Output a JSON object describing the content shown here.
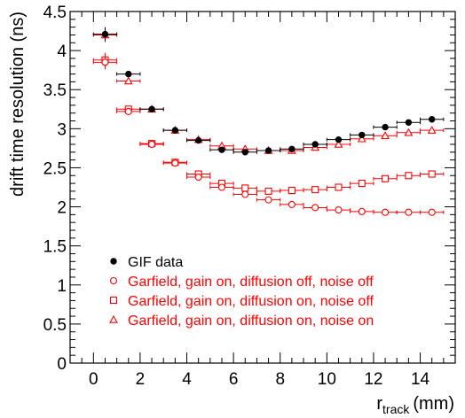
{
  "chart_data": {
    "type": "scatter",
    "xlabel_main": "r",
    "xlabel_sub": "track",
    "xlabel_unit": "(mm)",
    "ylabel": "drift time resolution (ns)",
    "xlim": [
      -1,
      15.5
    ],
    "ylim": [
      0,
      4.5
    ],
    "x_ticks": [
      "0",
      "2",
      "4",
      "6",
      "8",
      "10",
      "12",
      "14"
    ],
    "y_ticks": [
      "0",
      "0.5",
      "1",
      "1.5",
      "2",
      "2.5",
      "3",
      "3.5",
      "4",
      "4.5"
    ],
    "x": [
      0.5,
      1.5,
      2.5,
      3.5,
      4.5,
      5.5,
      6.5,
      7.5,
      8.5,
      9.5,
      10.5,
      11.5,
      12.5,
      13.5,
      14.5
    ],
    "series": [
      {
        "name": "GIF data",
        "color": "#000000",
        "marker": "filled-circle",
        "values": [
          4.21,
          3.7,
          3.25,
          2.98,
          2.85,
          2.73,
          2.7,
          2.72,
          2.74,
          2.8,
          2.86,
          2.92,
          3.02,
          3.08,
          3.12
        ]
      },
      {
        "name": "Garfield, gain on, diffusion off, noise off",
        "color": "#ff0000",
        "marker": "open-circle",
        "values": [
          3.85,
          3.22,
          2.8,
          2.56,
          2.38,
          2.25,
          2.16,
          2.09,
          2.03,
          1.99,
          1.96,
          1.94,
          1.93,
          1.93,
          1.93
        ]
      },
      {
        "name": "Garfield, gain on, diffusion on, noise off",
        "color": "#ff0000",
        "marker": "open-square",
        "values": [
          3.88,
          3.25,
          2.81,
          2.57,
          2.42,
          2.3,
          2.24,
          2.2,
          2.21,
          2.22,
          2.25,
          2.3,
          2.36,
          2.4,
          2.42
        ]
      },
      {
        "name": "Garfield, gain on, diffusion on, noise on",
        "color": "#ff0000",
        "marker": "open-triangle",
        "values": [
          4.2,
          3.61,
          3.25,
          2.98,
          2.86,
          2.78,
          2.74,
          2.72,
          2.72,
          2.76,
          2.8,
          2.87,
          2.91,
          2.95,
          2.98
        ]
      }
    ],
    "legend_position": "bottom-left"
  }
}
